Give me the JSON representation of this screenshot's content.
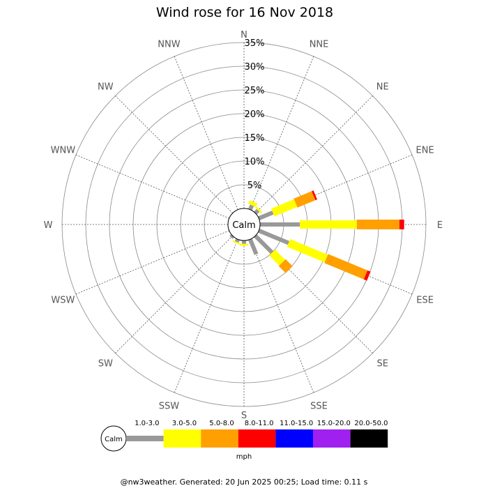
{
  "chart_data": {
    "type": "wind-rose",
    "title": "Wind rose for 16 Nov 2018",
    "directions": [
      "N",
      "NNE",
      "NE",
      "ENE",
      "E",
      "ESE",
      "SE",
      "SSE",
      "S",
      "SSW",
      "SW",
      "WSW",
      "W",
      "WNW",
      "NW",
      "NNW"
    ],
    "rings": [
      "5%",
      "10%",
      "15%",
      "20%",
      "25%",
      "30%",
      "35%"
    ],
    "r_max_percent": 35,
    "calm_label": "Calm",
    "speed_bins": [
      {
        "label": "1.0-3.0",
        "color": "#999999"
      },
      {
        "label": "3.0-5.0",
        "color": "#ffff00"
      },
      {
        "label": "5.0-8.0",
        "color": "#ffa000"
      },
      {
        "label": "8.0-11.0",
        "color": "#ff0000"
      },
      {
        "label": "11.0-15.0",
        "color": "#0000ff"
      },
      {
        "label": "15.0-20.0",
        "color": "#a020f0"
      },
      {
        "label": "20.0-50.0",
        "color": "#000000"
      }
    ],
    "units": "mph",
    "series": [
      {
        "direction": "N",
        "cumulative": [
          0,
          0,
          0,
          0,
          0,
          0,
          0
        ]
      },
      {
        "direction": "NNE",
        "cumulative": [
          1.0,
          1.8,
          1.8,
          1.8,
          1.8,
          1.8,
          1.8
        ]
      },
      {
        "direction": "NE",
        "cumulative": [
          0.8,
          1.2,
          1.2,
          1.2,
          1.2,
          1.2,
          1.2
        ]
      },
      {
        "direction": "ENE",
        "cumulative": [
          3.2,
          8.4,
          12.5,
          12.9,
          12.9,
          12.9,
          12.9
        ]
      },
      {
        "direction": "E",
        "cumulative": [
          8.4,
          20.4,
          29.4,
          30.4,
          30.4,
          30.4,
          30.4
        ]
      },
      {
        "direction": "ESE",
        "cumulative": [
          6.8,
          15.4,
          24.4,
          25.1,
          25.1,
          25.1,
          25.1
        ]
      },
      {
        "direction": "SE",
        "cumulative": [
          5.0,
          8.0,
          10.1,
          10.1,
          10.1,
          10.1,
          10.1
        ]
      },
      {
        "direction": "SSE",
        "cumulative": [
          3.4,
          3.4,
          3.4,
          3.4,
          3.4,
          3.4,
          3.4
        ]
      },
      {
        "direction": "S",
        "cumulative": [
          0.7,
          1.1,
          1.1,
          1.1,
          1.1,
          1.1,
          1.1
        ]
      },
      {
        "direction": "SSW",
        "cumulative": [
          0.6,
          0.9,
          0.9,
          0.9,
          0.9,
          0.9,
          0.9
        ]
      },
      {
        "direction": "SW",
        "cumulative": [
          0.5,
          0.5,
          0.5,
          0.5,
          0.5,
          0.5,
          0.5
        ]
      },
      {
        "direction": "WSW",
        "cumulative": [
          0,
          0,
          0,
          0,
          0,
          0,
          0
        ]
      },
      {
        "direction": "W",
        "cumulative": [
          0,
          0,
          0,
          0,
          0,
          0,
          0
        ]
      },
      {
        "direction": "WNW",
        "cumulative": [
          0,
          0,
          0,
          0,
          0,
          0,
          0
        ]
      },
      {
        "direction": "NW",
        "cumulative": [
          0,
          0,
          0,
          0,
          0,
          0,
          0
        ]
      },
      {
        "direction": "NNW",
        "cumulative": [
          0,
          0,
          0,
          0,
          0,
          0,
          0
        ]
      }
    ],
    "footer": "@nw3weather. Generated: 20 Jun 2025 00:25; Load time: 0.11 s"
  }
}
